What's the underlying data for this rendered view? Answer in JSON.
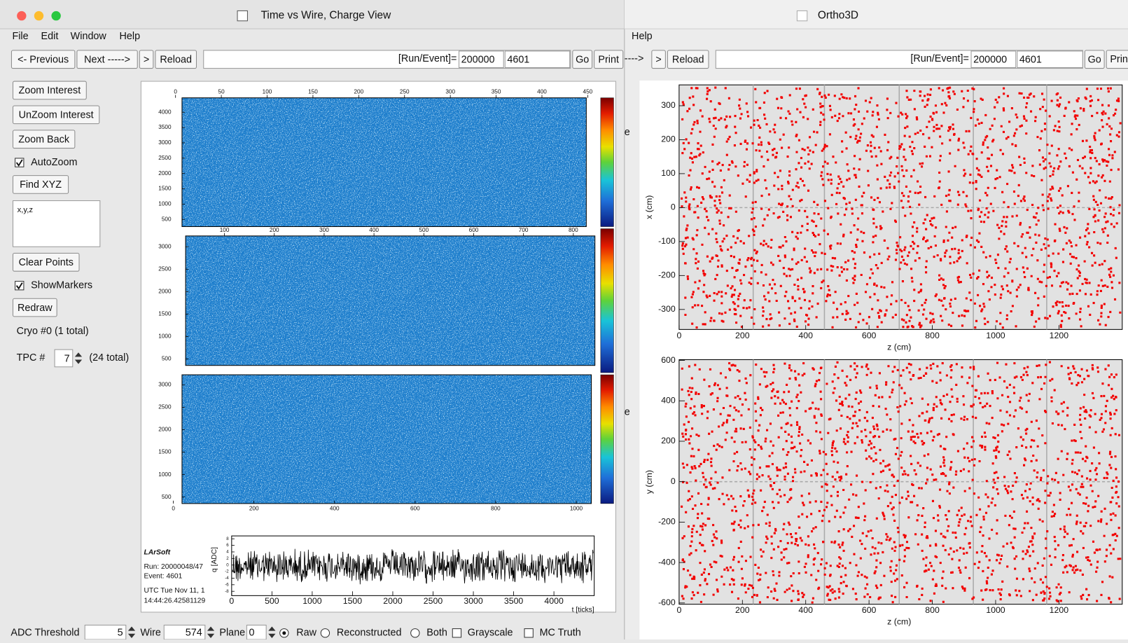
{
  "left_window": {
    "title": "Time vs Wire, Charge View",
    "menu": [
      "File",
      "Edit",
      "Window",
      "Help"
    ],
    "toolbar": {
      "buttons": [
        "<- Previous",
        "Next ----->",
        ">",
        "Reload"
      ],
      "run_event_label": "[Run/Event]=",
      "run": "200000",
      "event": "4601",
      "go": "Go",
      "print": "Print"
    },
    "sidebar": {
      "zoom_interest": "Zoom Interest",
      "unzoom_interest": "UnZoom Interest",
      "zoom_back": "Zoom Back",
      "autozoom": "AutoZoom",
      "find_xyz": "Find XYZ",
      "xyz_field": "x,y,z",
      "clear_points": "Clear Points",
      "show_markers": "ShowMarkers",
      "redraw": "Redraw",
      "cryo": "Cryo #0 (1 total)",
      "tpc_label": "TPC  #",
      "tpc_value": "7",
      "tpc_total": "(24 total)"
    },
    "views": [
      {
        "x_ticks": [
          0,
          50,
          100,
          150,
          200,
          250,
          300,
          350,
          400,
          450
        ],
        "y_ticks": [
          500,
          1000,
          1500,
          2000,
          2500,
          3000,
          3500,
          4000
        ]
      },
      {
        "x_ticks": [
          100,
          200,
          300,
          400,
          500,
          600,
          700,
          800
        ],
        "y_ticks": [
          500,
          1000,
          1500,
          2000,
          2500,
          3000
        ]
      },
      {
        "x_ticks": [
          0,
          200,
          400,
          600,
          800,
          1000
        ],
        "y_ticks": [
          500,
          1000,
          1500,
          2000,
          2500,
          3000
        ]
      }
    ],
    "waveform": {
      "x_ticks": [
        0,
        500,
        1000,
        1500,
        2000,
        2500,
        3000,
        3500,
        4000
      ],
      "y_ticks": [
        8,
        6,
        4,
        2,
        0,
        -2,
        -4,
        -6,
        -8
      ],
      "x_label": "t [ticks]",
      "y_label": "q [ADC]"
    },
    "info": {
      "software": "LArSoft",
      "run": "Run:  20000048/47",
      "event": "Event: 4601",
      "utc": "UTC Tue Nov 11, 1",
      "time": "14:44:26.42581129"
    },
    "bottom": {
      "adc_label": "ADC Threshold",
      "adc_value": "5",
      "wire_label": "Wire",
      "wire_value": "574",
      "plane_label": "Plane",
      "plane_value": "0",
      "options": [
        "Raw",
        "Reconstructed",
        "Both"
      ],
      "grayscale": "Grayscale",
      "mc_truth": "MC Truth"
    }
  },
  "right_window": {
    "title": "Ortho3D",
    "menu": [
      "Help"
    ],
    "toolbar": {
      "buttons": [
        "---->",
        ">",
        "Reload"
      ],
      "run_event_label": "[Run/Event]=",
      "run": "200000",
      "event": "4601",
      "go": "Go",
      "print": "Prin"
    },
    "side_labels": [
      "e",
      "e"
    ],
    "views": [
      {
        "x_ticks": [
          0,
          200,
          400,
          600,
          800,
          1000,
          1200
        ],
        "y_ticks": [
          300,
          200,
          100,
          0,
          -100,
          -200,
          -300
        ],
        "x_label": "z (cm)",
        "y_label": "x (cm)"
      },
      {
        "x_ticks": [
          0,
          200,
          400,
          600,
          800,
          1000,
          1200
        ],
        "y_ticks": [
          600,
          400,
          200,
          0,
          -200,
          -400,
          -600
        ],
        "x_label": "z (cm)",
        "y_label": "y (cm)"
      }
    ]
  }
}
